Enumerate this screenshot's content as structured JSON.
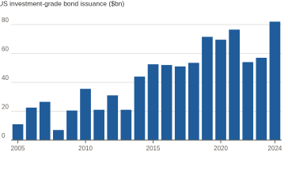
{
  "chart_data": {
    "type": "bar",
    "title": "US investment-grade bond issuance ($bn)",
    "x": [
      2005,
      2006,
      2007,
      2008,
      2009,
      2010,
      2011,
      2012,
      2013,
      2014,
      2015,
      2016,
      2017,
      2018,
      2019,
      2020,
      2021,
      2022,
      2023,
      2024
    ],
    "values": [
      11,
      22.5,
      26.5,
      7,
      20.5,
      35.5,
      21,
      31,
      21,
      44,
      52.5,
      52,
      51,
      53.5,
      71.5,
      69.5,
      76.5,
      54,
      57,
      82
    ],
    "color": "#1f5c99",
    "xlim": [
      2004.5,
      2024.5
    ],
    "xticks": [
      2005,
      2010,
      2015,
      2020,
      2024
    ],
    "ylim": [
      0,
      80
    ],
    "yticks": [
      0,
      20,
      40,
      60,
      80
    ],
    "grid": true
  }
}
